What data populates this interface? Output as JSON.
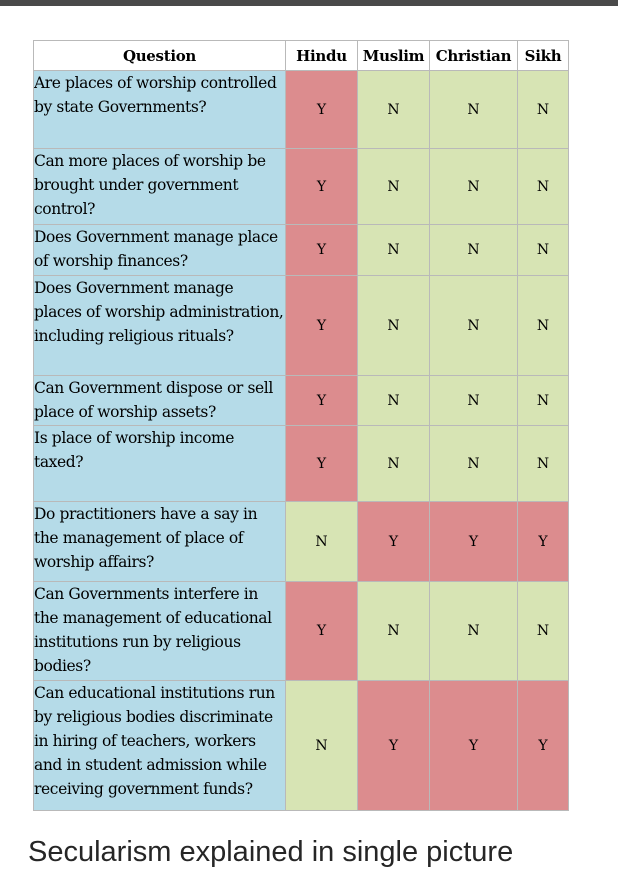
{
  "columns": [
    "Question",
    "Hindu",
    "Muslim",
    "Christian",
    "Sikh"
  ],
  "rows": [
    {
      "question": "Are places of worship controlled by state Governments?",
      "answers": [
        "Y",
        "N",
        "N",
        "N"
      ]
    },
    {
      "question": "Can more places of worship be brought under government control?",
      "answers": [
        "Y",
        "N",
        "N",
        "N"
      ]
    },
    {
      "question": "Does Government manage place of worship finances?",
      "answers": [
        "Y",
        "N",
        "N",
        "N"
      ]
    },
    {
      "question": "Does Government manage places of worship administration, including religious rituals?",
      "answers": [
        "Y",
        "N",
        "N",
        "N"
      ]
    },
    {
      "question": "Can Government dispose or sell place of worship assets?",
      "answers": [
        "Y",
        "N",
        "N",
        "N"
      ]
    },
    {
      "question": "Is place of worship income taxed?",
      "answers": [
        "Y",
        "N",
        "N",
        "N"
      ]
    },
    {
      "question": "Do practitioners have a say in the management of place of worship affairs?",
      "answers": [
        "N",
        "Y",
        "Y",
        "Y"
      ]
    },
    {
      "question": "Can Governments interfere in the management of educational institutions run by religious bodies?",
      "answers": [
        "Y",
        "N",
        "N",
        "N"
      ]
    },
    {
      "question": "Can educational institutions run by religious bodies discriminate in hiring of teachers, workers and in student admission while receiving government funds?",
      "answers": [
        "N",
        "Y",
        "Y",
        "Y"
      ]
    }
  ],
  "caption": "Secularism explained in single picture",
  "colors": {
    "yes_cell": "#dc8c8e",
    "no_cell": "#d7e4b4",
    "question_cell": "#b5dbe8"
  }
}
